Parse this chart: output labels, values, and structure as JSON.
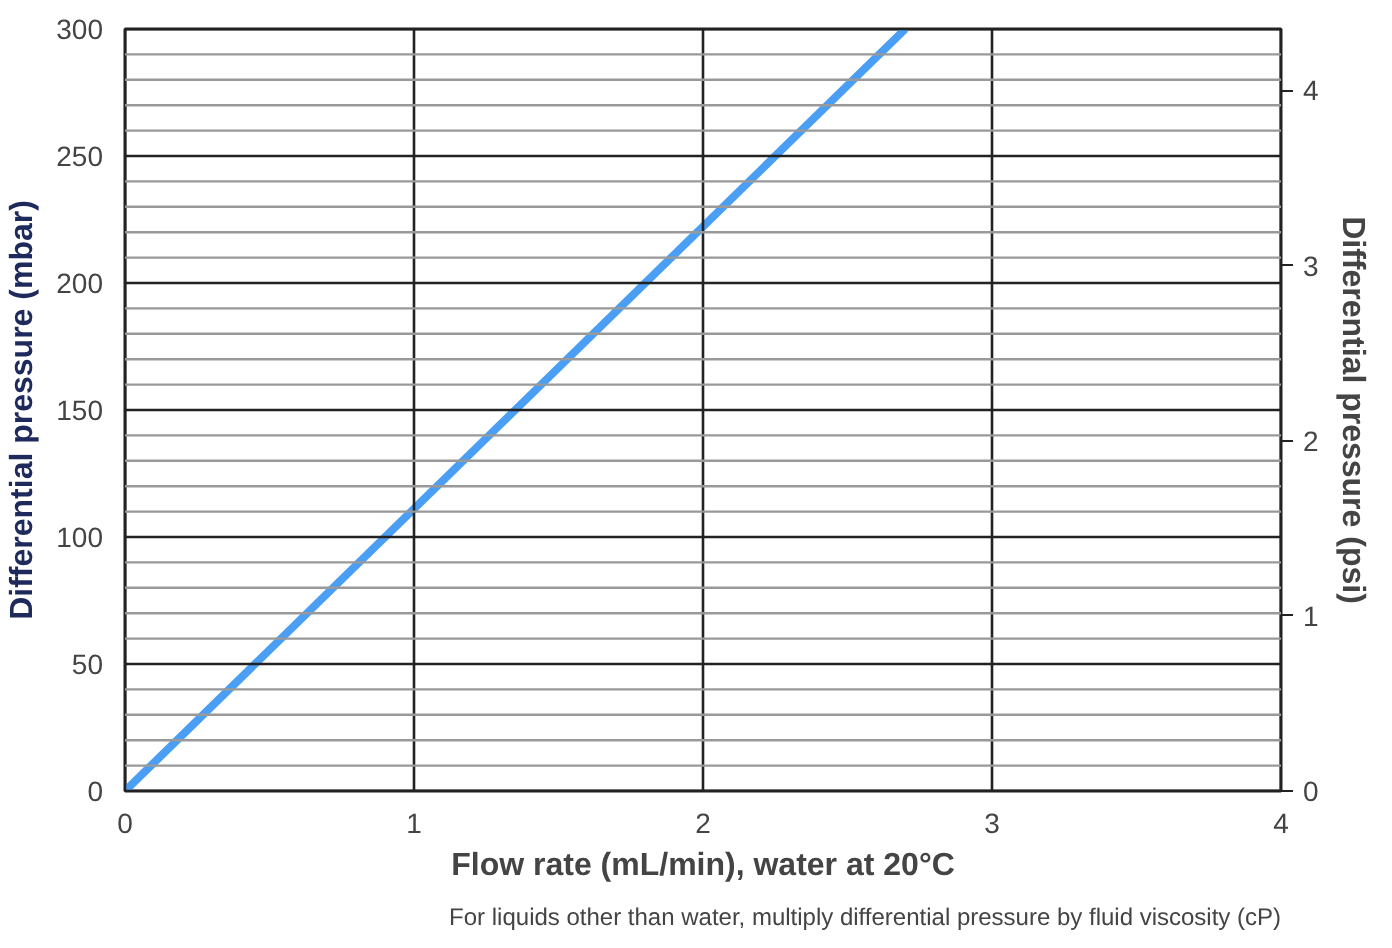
{
  "chart_data": {
    "type": "line",
    "xlabel": "Flow rate (mL/min), water at 20°C",
    "ylabel": "Differential pressure (mbar)",
    "y2label": "Differential pressure (psi)",
    "annotations": [
      "For liquids other than water, multiply differential pressure by fluid viscosity (cP)"
    ],
    "x": [
      0,
      2.7
    ],
    "series": [
      {
        "color": "#4a9ff5",
        "values": [
          0,
          300
        ]
      }
    ],
    "xlim": [
      0,
      4
    ],
    "xticks": [
      0,
      1,
      2,
      3,
      4
    ],
    "ylim": [
      0,
      300
    ],
    "yticks": [
      0,
      {
        "value": 10,
        "label": null
      },
      {
        "value": 20,
        "label": null
      },
      {
        "value": 30,
        "label": null
      },
      {
        "value": 40,
        "label": null
      },
      50,
      {
        "value": 60,
        "label": null
      },
      {
        "value": 70,
        "label": null
      },
      {
        "value": 80,
        "label": null
      },
      {
        "value": 90,
        "label": null
      },
      100,
      {
        "value": 110,
        "label": null
      },
      {
        "value": 120,
        "label": null
      },
      {
        "value": 130,
        "label": null
      },
      {
        "value": 140,
        "label": null
      },
      150,
      {
        "value": 160,
        "label": null
      },
      {
        "value": 170,
        "label": null
      },
      {
        "value": 180,
        "label": null
      },
      {
        "value": 190,
        "label": null
      },
      200,
      {
        "value": 210,
        "label": null
      },
      {
        "value": 220,
        "label": null
      },
      {
        "value": 230,
        "label": null
      },
      {
        "value": 240,
        "label": null
      },
      250,
      {
        "value": 260,
        "label": null
      },
      {
        "value": 270,
        "label": null
      },
      {
        "value": 280,
        "label": null
      },
      {
        "value": 290,
        "label": null
      },
      300
    ],
    "y2lim": [
      0,
      4.351
    ],
    "y2ticks": [
      0,
      1,
      2,
      3,
      4
    ],
    "grid": true,
    "line_style": "solid"
  }
}
